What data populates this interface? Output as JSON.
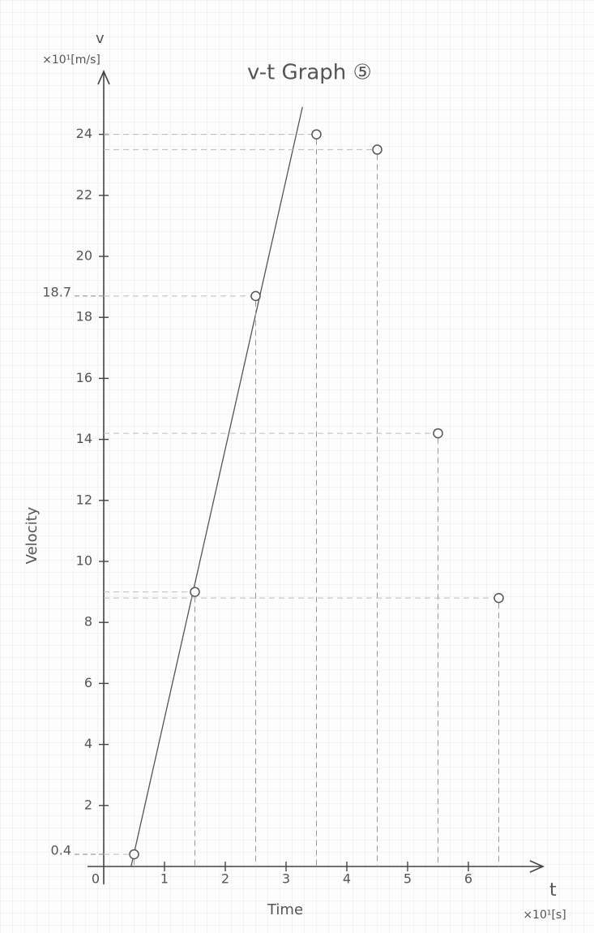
{
  "chart_data": {
    "type": "scatter",
    "title": "v-t Graph ⑤",
    "x_label": "Time",
    "y_label": "Velocity",
    "x_symbol": "t",
    "y_symbol": "v",
    "x_unit": "×10¹[s]",
    "y_unit": "×10¹[m/s]",
    "x": [
      0.5,
      1.5,
      2.5,
      3.5,
      4.5,
      5.5,
      6.5
    ],
    "y": [
      0.4,
      9.0,
      18.7,
      24,
      23.5,
      14.2,
      8.8
    ],
    "fit_line": {
      "x": [
        0.45,
        3.27
      ],
      "y": [
        0,
        24.9
      ]
    },
    "marked_values": [
      0.4,
      18.7
    ],
    "xlim": [
      0,
      7.2
    ],
    "ylim": [
      0,
      26
    ],
    "xticks": [
      0,
      1,
      2,
      3,
      4,
      5,
      6
    ],
    "yticks": [
      2,
      4,
      6,
      8,
      10,
      12,
      14,
      16,
      18,
      20,
      22,
      24
    ],
    "color": "#555555",
    "grid": true
  }
}
